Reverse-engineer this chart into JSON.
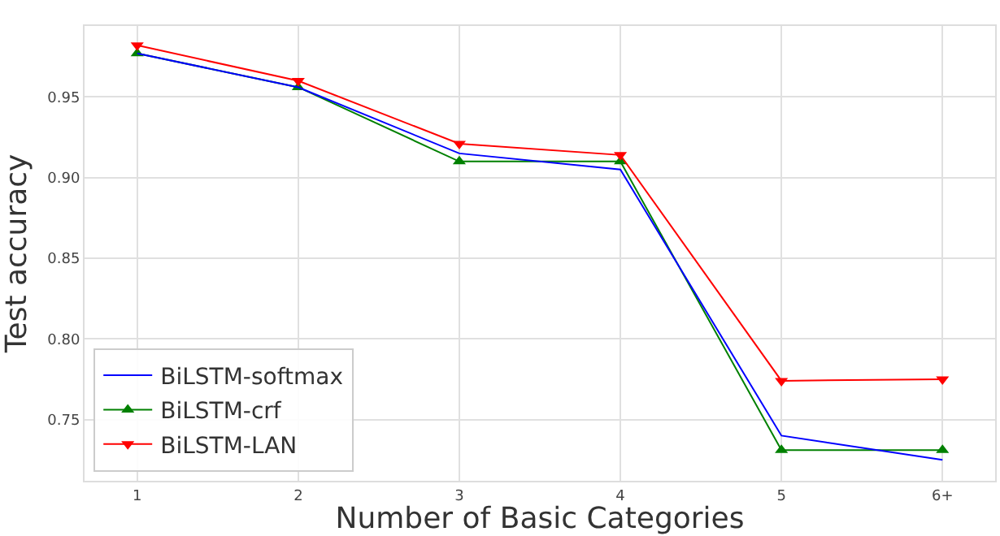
{
  "chart_data": {
    "type": "line",
    "xlabel": "Number of Basic Categories",
    "ylabel": "Test accuracy",
    "categories": [
      "1",
      "2",
      "3",
      "4",
      "5",
      "6+"
    ],
    "series": [
      {
        "name": "BiLSTM-softmax",
        "color": "#0000ff",
        "marker": "none",
        "values": [
          0.977,
          0.956,
          0.915,
          0.905,
          0.74,
          0.725
        ]
      },
      {
        "name": "BiLSTM-crf",
        "color": "#008000",
        "marker": "triangle",
        "values": [
          0.977,
          0.956,
          0.91,
          0.91,
          0.731,
          0.731
        ]
      },
      {
        "name": "BiLSTM-LAN",
        "color": "#ff0000",
        "marker": "triangle-down",
        "values": [
          0.982,
          0.96,
          0.921,
          0.914,
          0.774,
          0.775
        ]
      }
    ],
    "ylim": [
      0.712,
      0.994
    ],
    "yticks": [
      {
        "value": 0.75,
        "label": "0.75"
      },
      {
        "value": 0.8,
        "label": "0.80"
      },
      {
        "value": 0.85,
        "label": "0.85"
      },
      {
        "value": 0.9,
        "label": "0.90"
      },
      {
        "value": 0.95,
        "label": "0.95"
      }
    ],
    "grid": true,
    "legend": "bottom left"
  }
}
